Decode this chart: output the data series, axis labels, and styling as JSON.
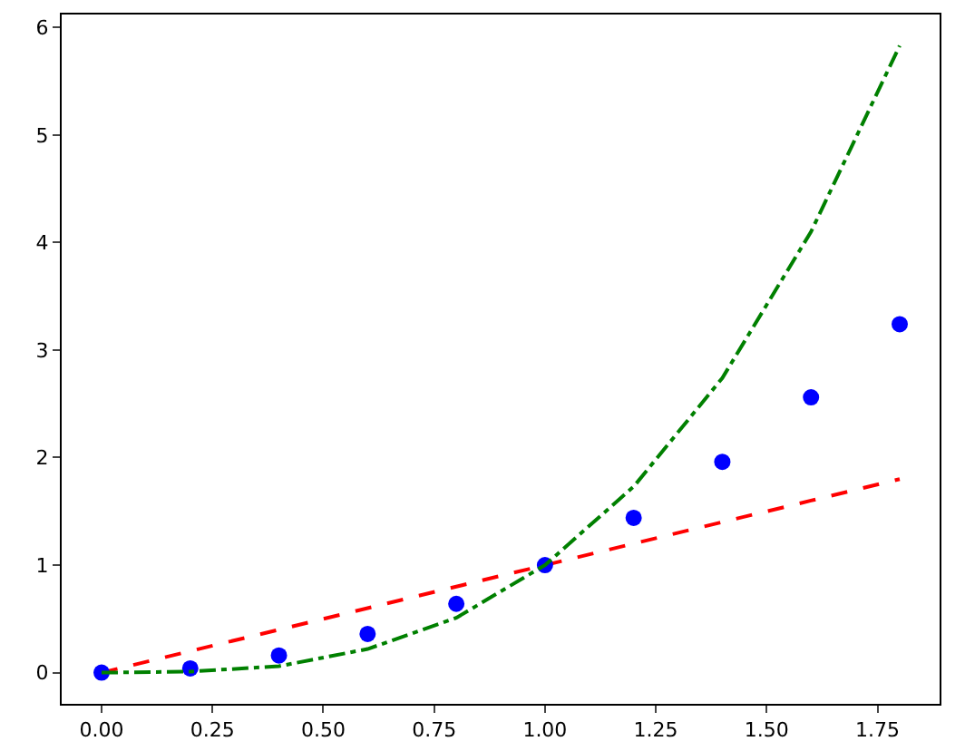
{
  "chart_data": {
    "type": "line",
    "x": [
      0,
      0.2,
      0.4,
      0.6,
      0.8,
      1.0,
      1.2,
      1.4,
      1.6,
      1.8
    ],
    "series": [
      {
        "color": "#ff0000",
        "line_style": "dashed",
        "values": [
          0,
          0.2,
          0.4,
          0.6,
          0.8,
          1.0,
          1.2,
          1.4,
          1.6,
          1.8
        ]
      },
      {
        "type": "scatter",
        "marker": "circle",
        "color": "#0000ff",
        "values": [
          0,
          0.04,
          0.16,
          0.36,
          0.64,
          1.0,
          1.44,
          1.96,
          2.56,
          3.24
        ]
      },
      {
        "color": "#008000",
        "line_style": "dashdot",
        "values": [
          0,
          0.01,
          0.06,
          0.22,
          0.51,
          1.0,
          1.73,
          2.74,
          4.1,
          5.83
        ]
      }
    ],
    "xlim": [
      -0.09,
      1.89
    ],
    "xticks": [
      {
        "value": 0,
        "label": "0.00"
      },
      0.25,
      {
        "value": 0.5,
        "label": "0.50"
      },
      0.75,
      {
        "value": 1,
        "label": "1.00"
      },
      1.25,
      {
        "value": 1.5,
        "label": "1.50"
      },
      1.75
    ],
    "ylim": [
      -0.29,
      6.12
    ],
    "yticks": [
      0,
      1,
      2,
      3,
      4,
      5,
      6
    ],
    "grid": false,
    "legend": false
  }
}
